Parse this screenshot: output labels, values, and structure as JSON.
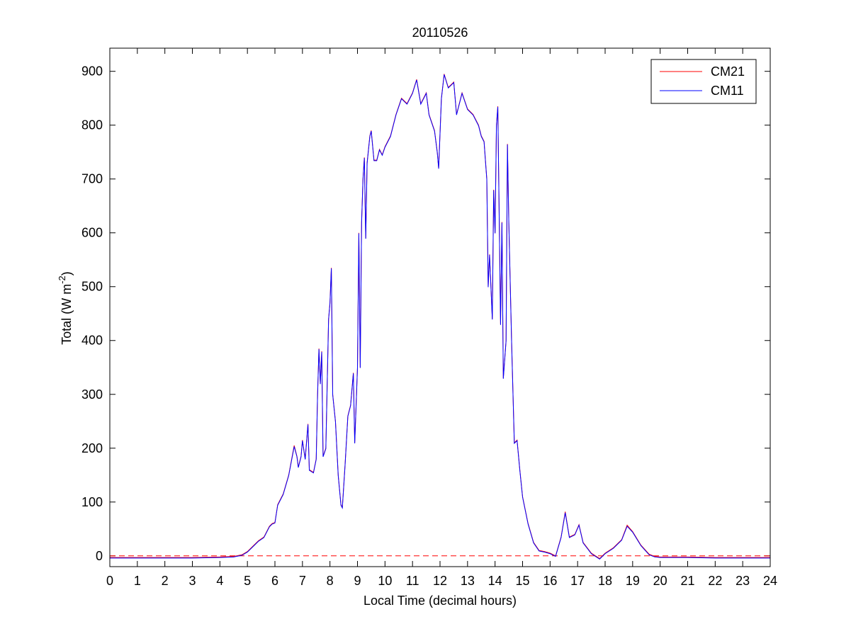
{
  "chart_data": {
    "type": "line",
    "title": "20110526",
    "xlabel": "Local Time (decimal hours)",
    "ylabel": {
      "text": "Total (W m",
      "superscript": "-2",
      "suffix": ")"
    },
    "x": [
      0,
      1,
      2,
      3,
      4,
      4.5,
      4.8,
      5,
      5.2,
      5.4,
      5.6,
      5.8,
      5.9,
      6,
      6.1,
      6.3,
      6.5,
      6.7,
      6.8,
      6.85,
      6.95,
      7,
      7.1,
      7.2,
      7.25,
      7.4,
      7.5,
      7.55,
      7.6,
      7.65,
      7.7,
      7.75,
      7.85,
      7.95,
      8,
      8.05,
      8.1,
      8.2,
      8.3,
      8.4,
      8.45,
      8.55,
      8.65,
      8.75,
      8.85,
      8.9,
      9,
      9.05,
      9.1,
      9.15,
      9.2,
      9.25,
      9.3,
      9.35,
      9.45,
      9.5,
      9.6,
      9.7,
      9.8,
      9.9,
      10,
      10.2,
      10.4,
      10.6,
      10.8,
      11,
      11.15,
      11.3,
      11.5,
      11.6,
      11.8,
      11.9,
      11.95,
      12.05,
      12.15,
      12.3,
      12.5,
      12.6,
      12.8,
      13,
      13.2,
      13.4,
      13.5,
      13.6,
      13.7,
      13.75,
      13.8,
      13.9,
      13.95,
      14,
      14.05,
      14.1,
      14.2,
      14.25,
      14.3,
      14.4,
      14.45,
      14.5,
      14.6,
      14.7,
      14.8,
      14.9,
      15,
      15.2,
      15.4,
      15.6,
      15.8,
      16,
      16.2,
      16.4,
      16.55,
      16.7,
      16.9,
      17.05,
      17.2,
      17.5,
      17.8,
      18,
      18.3,
      18.6,
      18.8,
      19,
      19.3,
      19.6,
      19.8,
      20,
      21,
      22,
      23,
      24
    ],
    "series": [
      {
        "name": "CM21",
        "color": "#ff0000",
        "values": [
          -3,
          -3,
          -3,
          -3,
          -2,
          -1,
          2,
          8,
          18,
          28,
          35,
          55,
          60,
          62,
          95,
          115,
          150,
          205,
          185,
          165,
          185,
          215,
          180,
          245,
          160,
          155,
          180,
          300,
          385,
          320,
          380,
          185,
          200,
          440,
          470,
          535,
          300,
          250,
          150,
          95,
          90,
          170,
          260,
          280,
          340,
          210,
          350,
          600,
          350,
          620,
          700,
          740,
          590,
          730,
          780,
          790,
          735,
          735,
          755,
          745,
          760,
          780,
          820,
          850,
          840,
          860,
          885,
          840,
          860,
          820,
          790,
          750,
          720,
          850,
          895,
          870,
          880,
          820,
          860,
          830,
          820,
          800,
          780,
          770,
          700,
          500,
          560,
          440,
          680,
          600,
          800,
          835,
          430,
          620,
          330,
          400,
          765,
          620,
          400,
          210,
          215,
          160,
          110,
          60,
          25,
          10,
          8,
          5,
          0,
          35,
          82,
          35,
          40,
          58,
          25,
          5,
          -5,
          5,
          15,
          30,
          57,
          45,
          20,
          3,
          -1,
          -2,
          -2,
          -3,
          -3,
          -3
        ]
      },
      {
        "name": "CM11",
        "color": "#0000ff",
        "values": [
          -4,
          -4,
          -4,
          -4,
          -3,
          -2,
          1,
          7,
          17,
          27,
          34,
          54,
          59,
          61,
          94,
          114,
          149,
          203,
          184,
          164,
          184,
          214,
          179,
          244,
          159,
          154,
          179,
          299,
          384,
          319,
          379,
          184,
          199,
          439,
          469,
          534,
          299,
          249,
          149,
          94,
          89,
          169,
          259,
          279,
          339,
          209,
          349,
          599,
          349,
          619,
          699,
          739,
          589,
          729,
          779,
          789,
          734,
          734,
          754,
          744,
          759,
          779,
          819,
          849,
          839,
          859,
          884,
          839,
          859,
          819,
          789,
          749,
          719,
          849,
          894,
          869,
          879,
          819,
          859,
          829,
          819,
          799,
          779,
          769,
          699,
          499,
          559,
          439,
          679,
          599,
          799,
          834,
          429,
          619,
          329,
          399,
          764,
          619,
          399,
          209,
          214,
          159,
          109,
          59,
          24,
          9,
          7,
          4,
          -1,
          34,
          80,
          34,
          39,
          57,
          24,
          4,
          -6,
          4,
          14,
          29,
          55,
          44,
          19,
          2,
          -2,
          -3,
          -3,
          -4,
          -4,
          -4
        ]
      }
    ],
    "hline": {
      "value": 0,
      "color": "#ff0000",
      "dashed": true
    },
    "xlim": [
      0,
      24
    ],
    "xticks": [
      0,
      1,
      2,
      3,
      4,
      5,
      6,
      7,
      8,
      9,
      10,
      11,
      12,
      13,
      14,
      15,
      16,
      17,
      18,
      19,
      20,
      21,
      22,
      23,
      24
    ],
    "ylim": [
      -20,
      943
    ],
    "yticks": [
      0,
      100,
      200,
      300,
      400,
      500,
      600,
      700,
      800,
      900
    ],
    "grid": false,
    "legend": "top-right"
  }
}
